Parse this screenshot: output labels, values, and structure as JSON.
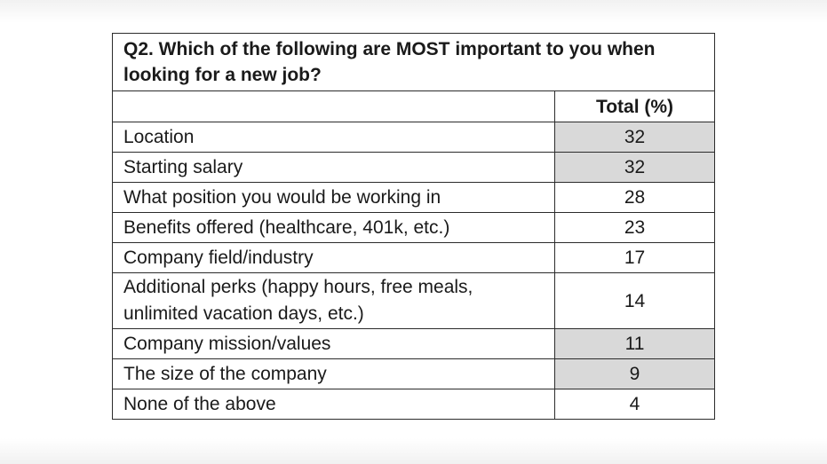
{
  "question": "Q2. Which of the following are MOST important to you when looking for a new job?",
  "column_header": "Total (%)",
  "rows": [
    {
      "label": "Location",
      "value": "32",
      "highlight": true
    },
    {
      "label": "Starting salary",
      "value": "32",
      "highlight": true
    },
    {
      "label": "What position you would be working in",
      "value": "28",
      "highlight": false
    },
    {
      "label": "Benefits offered (healthcare, 401k, etc.)",
      "value": "23",
      "highlight": false
    },
    {
      "label": "Company field/industry",
      "value": "17",
      "highlight": false
    },
    {
      "label": "Additional perks (happy hours, free meals, unlimited vacation days, etc.)",
      "value": "14",
      "highlight": false
    },
    {
      "label": "Company mission/values",
      "value": "11",
      "highlight": true
    },
    {
      "label": "The size of the company",
      "value": "9",
      "highlight": true
    },
    {
      "label": "None of the above",
      "value": "4",
      "highlight": false
    }
  ],
  "colors": {
    "highlight": "#d9d9d9",
    "border": "#2b2b2b",
    "text": "#1a1a1a"
  },
  "chart_data": {
    "type": "table",
    "title": "Q2. Which of the following are MOST important to you when looking for a new job?",
    "columns": [
      "Total (%)"
    ],
    "categories": [
      "Location",
      "Starting salary",
      "What position you would be working in",
      "Benefits offered (healthcare, 401k, etc.)",
      "Company field/industry",
      "Additional perks (happy hours, free meals, unlimited vacation days, etc.)",
      "Company mission/values",
      "The size of the company",
      "None of the above"
    ],
    "values": [
      32,
      32,
      28,
      23,
      17,
      14,
      11,
      9,
      4
    ]
  }
}
